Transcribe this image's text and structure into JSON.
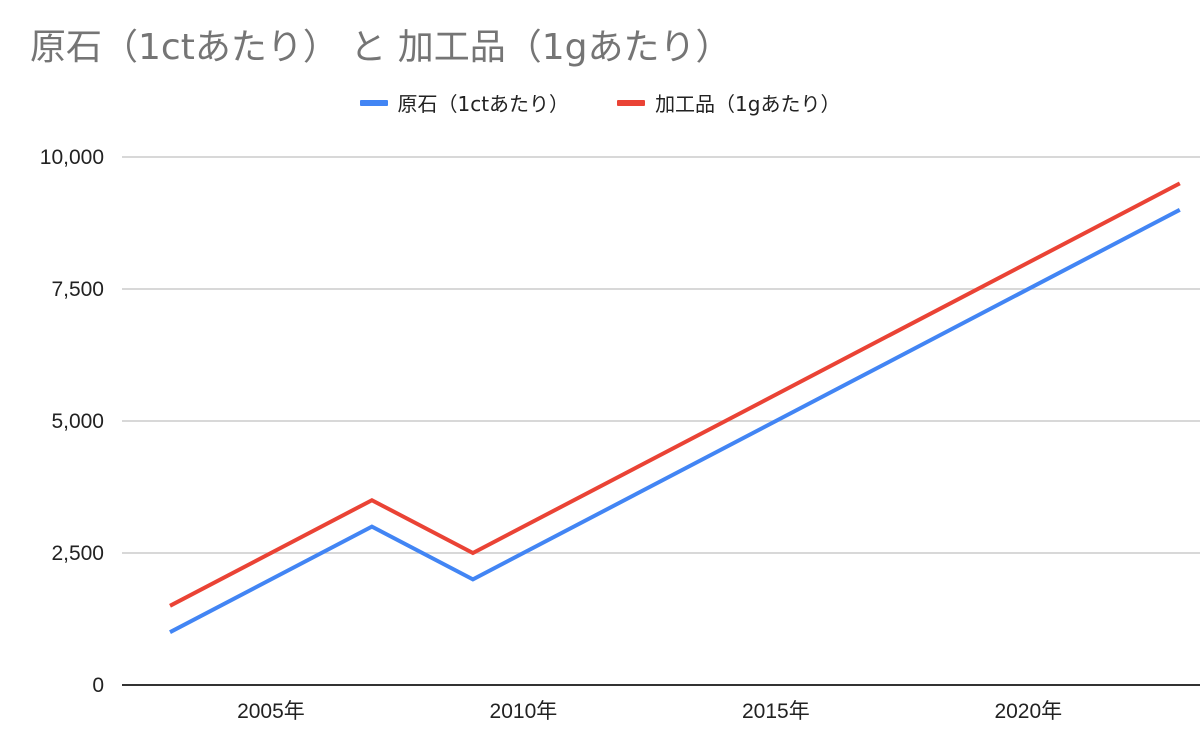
{
  "title": "原石（1ctあたり） と 加工品（1gあたり）",
  "legend": [
    {
      "label": "原石（1ctあたり）",
      "color": "#4285F4"
    },
    {
      "label": "加工品（1gあたり）",
      "color": "#EA4335"
    }
  ],
  "chart_data": {
    "type": "line",
    "title": "原石（1ctあたり） と 加工品（1gあたり）",
    "xlabel": "",
    "ylabel": "",
    "x": [
      2003,
      2007,
      2009,
      2023
    ],
    "xlim": [
      2002.05,
      2023.4
    ],
    "xticks": [
      {
        "value": 2005,
        "label": "2005年"
      },
      {
        "value": 2010,
        "label": "2010年"
      },
      {
        "value": 2015,
        "label": "2015年"
      },
      {
        "value": 2020,
        "label": "2020年"
      }
    ],
    "ylim": [
      0,
      10000
    ],
    "yticks": [
      {
        "value": 0,
        "label": "0"
      },
      {
        "value": 2500,
        "label": "2,500"
      },
      {
        "value": 5000,
        "label": "5,000"
      },
      {
        "value": 7500,
        "label": "7,500"
      },
      {
        "value": 10000,
        "label": "10,000"
      }
    ],
    "grid": true,
    "legend_position": "top",
    "series": [
      {
        "name": "原石（1ctあたり）",
        "color": "#4285F4",
        "values": [
          1000,
          3000,
          2000,
          9000
        ]
      },
      {
        "name": "加工品（1gあたり）",
        "color": "#EA4335",
        "values": [
          1500,
          3500,
          2500,
          9500
        ]
      }
    ]
  }
}
